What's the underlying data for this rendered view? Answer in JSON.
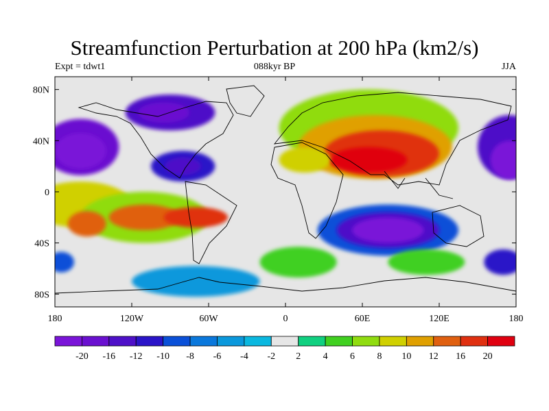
{
  "title": "Streamfunction Perturbation at 200 hPa (km2/s)",
  "subtitle_left": "Expt = tdwt1",
  "subtitle_center": "088kyr BP",
  "subtitle_right": "JJA",
  "lat_ticks": [
    "80N",
    "40N",
    "0",
    "40S",
    "80S"
  ],
  "lon_ticks": [
    "180",
    "120W",
    "60W",
    "0",
    "60E",
    "120E",
    "180"
  ],
  "colorbar": {
    "labels": [
      "-20",
      "-16",
      "-12",
      "-10",
      "-8",
      "-6",
      "-4",
      "-2",
      "2",
      "4",
      "6",
      "8",
      "10",
      "12",
      "16",
      "20"
    ],
    "colors": [
      "#7a14d8",
      "#6a10d0",
      "#4e10c8",
      "#2a14c8",
      "#0a50d8",
      "#0a78dc",
      "#0a98dc",
      "#0ab8e0",
      "#e6e6e6",
      "#10d080",
      "#40d020",
      "#90dc10",
      "#d0d000",
      "#e0a000",
      "#e06010",
      "#e03010",
      "#e00010"
    ]
  },
  "field_blobs": [
    {
      "lon": -160,
      "lat": 35,
      "rx": 30,
      "ry": 22,
      "level": 1
    },
    {
      "lon": -160,
      "lat": 32,
      "rx": 20,
      "ry": 14,
      "level": 0
    },
    {
      "lon": -90,
      "lat": 62,
      "rx": 35,
      "ry": 14,
      "level": 2
    },
    {
      "lon": -95,
      "lat": 62,
      "rx": 20,
      "ry": 8,
      "level": 1
    },
    {
      "lon": -80,
      "lat": 20,
      "rx": 25,
      "ry": 12,
      "level": 3
    },
    {
      "lon": -80,
      "lat": 20,
      "rx": 14,
      "ry": 7,
      "level": 2
    },
    {
      "lon": -160,
      "lat": -10,
      "rx": 40,
      "ry": 18,
      "level": 12
    },
    {
      "lon": -110,
      "lat": -20,
      "rx": 50,
      "ry": 20,
      "level": 11
    },
    {
      "lon": -110,
      "lat": -20,
      "rx": 28,
      "ry": 10,
      "level": 14
    },
    {
      "lon": -70,
      "lat": -20,
      "rx": 25,
      "ry": 8,
      "level": 15
    },
    {
      "lon": -155,
      "lat": -25,
      "rx": 15,
      "ry": 10,
      "level": 14
    },
    {
      "lon": 65,
      "lat": 50,
      "rx": 70,
      "ry": 30,
      "level": 11
    },
    {
      "lon": 70,
      "lat": 35,
      "rx": 60,
      "ry": 25,
      "level": 13
    },
    {
      "lon": 75,
      "lat": 30,
      "rx": 45,
      "ry": 18,
      "level": 15
    },
    {
      "lon": 65,
      "lat": 25,
      "rx": 30,
      "ry": 10,
      "level": 16
    },
    {
      "lon": 15,
      "lat": 25,
      "rx": 20,
      "ry": 10,
      "level": 12
    },
    {
      "lon": 80,
      "lat": -30,
      "rx": 55,
      "ry": 20,
      "level": 4
    },
    {
      "lon": 80,
      "lat": -30,
      "rx": 40,
      "ry": 14,
      "level": 2
    },
    {
      "lon": 80,
      "lat": -30,
      "rx": 28,
      "ry": 10,
      "level": 0
    },
    {
      "lon": 175,
      "lat": 35,
      "rx": 25,
      "ry": 25,
      "level": 2
    },
    {
      "lon": 175,
      "lat": 25,
      "rx": 15,
      "ry": 15,
      "level": 0
    },
    {
      "lon": 10,
      "lat": -55,
      "rx": 30,
      "ry": 12,
      "level": 10
    },
    {
      "lon": 110,
      "lat": -55,
      "rx": 30,
      "ry": 10,
      "level": 10
    },
    {
      "lon": -70,
      "lat": -70,
      "rx": 50,
      "ry": 12,
      "level": 6
    },
    {
      "lon": 170,
      "lat": -55,
      "rx": 15,
      "ry": 10,
      "level": 3
    },
    {
      "lon": -175,
      "lat": -55,
      "rx": 10,
      "ry": 8,
      "level": 4
    }
  ]
}
